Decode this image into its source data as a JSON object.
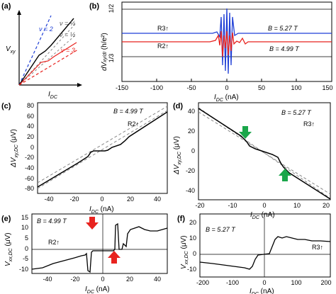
{
  "panels": {
    "a": {
      "label": "(a)",
      "ylabel": "V",
      "ylabel_sub": "xy",
      "xlabel": "I",
      "xlabel_sub": "DC",
      "nu2": "ν = 2",
      "nu_half1": "ν = ½",
      "nu_half2": "ν = ½",
      "nu3": "ν = 3"
    },
    "b": {
      "label": "(b)",
      "ylabel": "dV",
      "ylabel_rest": "xy/dI",
      "ylabel_units": " (h/e²)",
      "ytick_top": "1/2",
      "ytick_bottom": "1/3",
      "xlabel": "I",
      "xlabel_sub": "DC",
      "xunit": " (nA)",
      "xticks": [
        "-150",
        "-100",
        "-50",
        "0",
        "50",
        "100",
        "150"
      ],
      "r3": "R3↑",
      "r2": "R2↑",
      "b1": "B = 5.27 T",
      "b2": "B = 4.99 T"
    },
    "c": {
      "label": "(c)",
      "ylabel": "ΔV",
      "ylabel_sub": "xy,DC",
      "yunit": " (μV)",
      "yticks": [
        "80",
        "60",
        "40",
        "20",
        "0",
        "-20",
        "-40",
        "-60",
        "-80"
      ],
      "xticks": [
        "-40",
        "-20",
        "0",
        "20",
        "40"
      ],
      "xlabel": "I",
      "xlabel_sub": "DC",
      "xunit": " (nA)",
      "b": "B = 4.99 T",
      "r": "R2↑"
    },
    "d": {
      "label": "(d)",
      "ylabel": "ΔV",
      "ylabel_sub": "xy,DC",
      "yunit": " (μV)",
      "yticks": [
        "40",
        "20",
        "0",
        "-20",
        "-40"
      ],
      "xticks": [
        "-20",
        "-10",
        "0",
        "10",
        "20"
      ],
      "xlabel": "I",
      "xlabel_sub": "DC",
      "xunit": " (nA)",
      "b": "B = 5.27 T",
      "r": "R3↑"
    },
    "e": {
      "label": "(e)",
      "ylabel": "V",
      "ylabel_sub": "xx,DC",
      "yunit": " (μV)",
      "yticks": [
        "15",
        "10",
        "5",
        "0",
        "-5",
        "-10"
      ],
      "xticks": [
        "-40",
        "-20",
        "0",
        "20",
        "40"
      ],
      "xlabel": "I",
      "xlabel_sub": "DC",
      "xunit": " (nA)",
      "b": "B = 4.99 T",
      "r": "R2↑"
    },
    "f": {
      "label": "(f)",
      "ylabel": "V",
      "ylabel_sub": "xx,DC",
      "yunit": " (μV)",
      "yticks": [
        "20",
        "10",
        "0",
        "-10"
      ],
      "xticks": [
        "-200",
        "-100",
        "0",
        "100",
        "200"
      ],
      "xlabel": "I",
      "xlabel_sub": "DC",
      "xunit": " (nA)",
      "b": "B = 5.27 T",
      "r": "R3↑"
    }
  },
  "colors": {
    "red": "#e8231f",
    "blue": "#1f3fd6",
    "green": "#1aa64a",
    "gray": "#888888",
    "black": "#000000"
  }
}
